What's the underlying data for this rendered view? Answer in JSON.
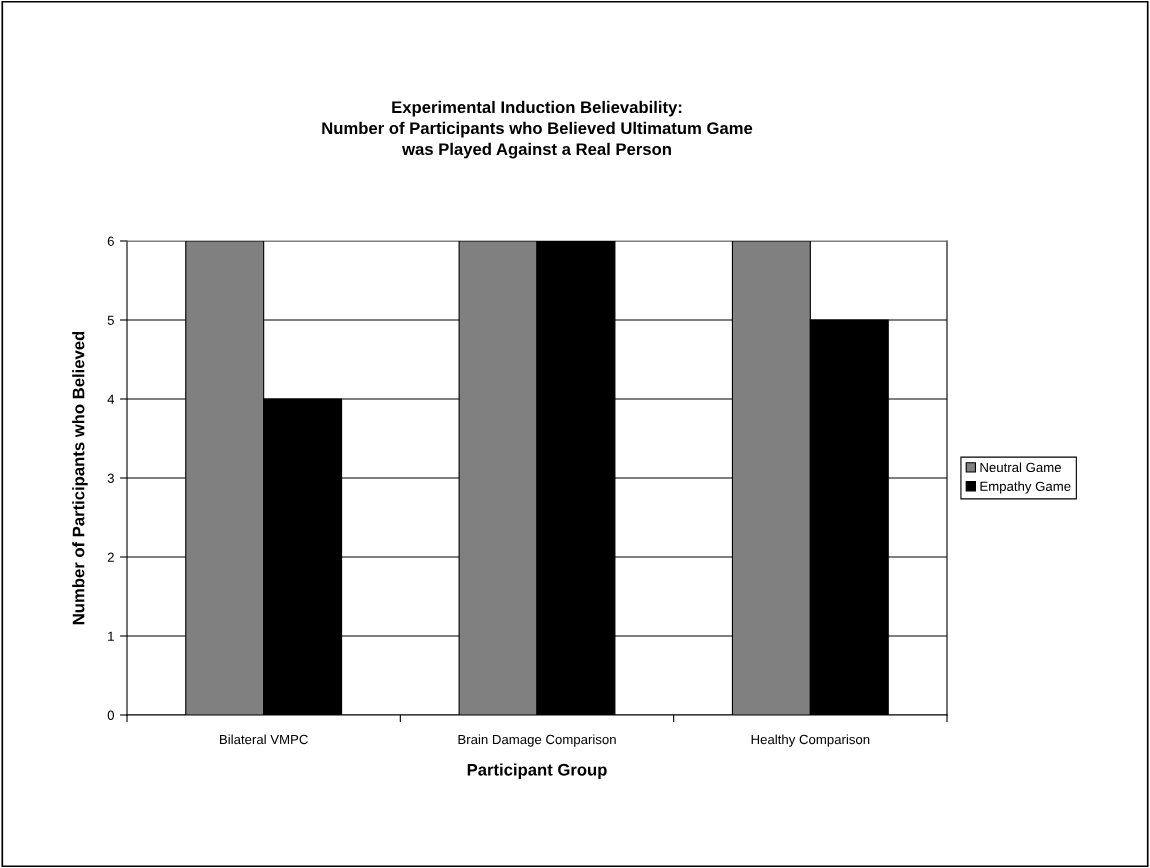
{
  "chart_data": {
    "type": "bar",
    "title": "Experimental Induction Believability:\nNumber of Participants who Believed Ultimatum Game\nwas Played Against a Real Person",
    "xlabel": "Participant Group",
    "ylabel": "Number of Participants who Believed",
    "categories": [
      "Bilateral VMPC",
      "Brain Damage Comparison",
      "Healthy Comparison"
    ],
    "series": [
      {
        "name": "Neutral Game",
        "color": "#808080",
        "values": [
          6,
          6,
          6
        ]
      },
      {
        "name": "Empathy Game",
        "color": "#000000",
        "values": [
          4,
          6,
          5
        ]
      }
    ],
    "ylim": [
      0,
      6
    ],
    "yticks": [
      0,
      1,
      2,
      3,
      4,
      5,
      6
    ],
    "grid": "y",
    "legend": "right"
  }
}
